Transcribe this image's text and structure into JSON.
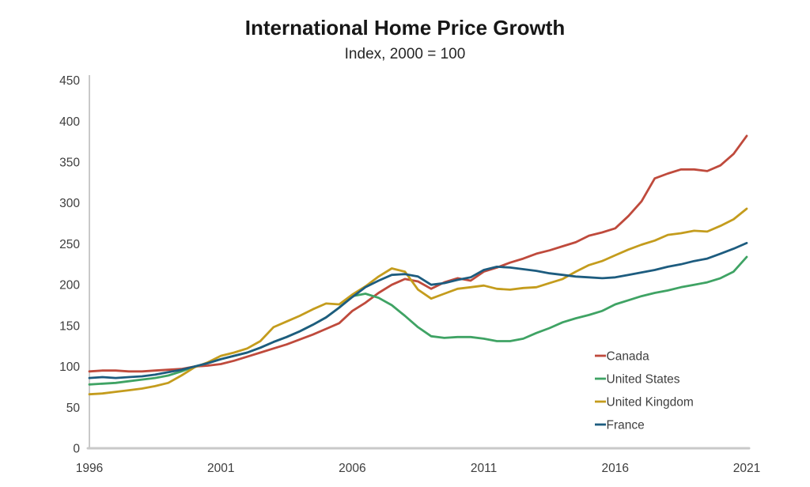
{
  "page": {
    "title": "International Home Price Growth",
    "subtitle": "Index, 2000 = 100"
  },
  "colors": {
    "canada": "#bf4a3c",
    "united_states": "#3fa364",
    "united_kingdom": "#c49c1d",
    "france": "#1d5c7f",
    "axis_line": "#c9c9c9",
    "tick_text": "#3d3d3d",
    "legend_text": "#404040",
    "background": "#ffffff"
  },
  "chart_data": {
    "type": "line",
    "title": "International Home Price Growth",
    "subtitle": "Index, 2000 = 100",
    "xlabel": "",
    "ylabel": "",
    "x_range": [
      1996,
      2021
    ],
    "ylim": [
      0,
      450
    ],
    "x_ticks": [
      "1996",
      "2001",
      "2006",
      "2011",
      "2016",
      "2021"
    ],
    "x_tick_years": [
      1996,
      2001,
      2006,
      2011,
      2016,
      2021
    ],
    "y_ticks": [
      0,
      50,
      100,
      150,
      200,
      250,
      300,
      350,
      400,
      450
    ],
    "grid": false,
    "legend_position": "inside-bottom-right",
    "x": [
      1996,
      1996.5,
      1997,
      1997.5,
      1998,
      1998.5,
      1999,
      1999.5,
      2000,
      2000.5,
      2001,
      2001.5,
      2002,
      2002.5,
      2003,
      2003.5,
      2004,
      2004.5,
      2005,
      2005.5,
      2006,
      2006.5,
      2007,
      2007.5,
      2008,
      2008.5,
      2009,
      2009.5,
      2010,
      2010.5,
      2011,
      2011.5,
      2012,
      2012.5,
      2013,
      2013.5,
      2014,
      2014.5,
      2015,
      2015.5,
      2016,
      2016.5,
      2017,
      2017.5,
      2018,
      2018.5,
      2019,
      2019.5,
      2020,
      2020.5,
      2021
    ],
    "series": [
      {
        "name": "Canada",
        "color": "#bf4a3c",
        "values": [
          94,
          95,
          95,
          94,
          94,
          95,
          96,
          97,
          100,
          101,
          103,
          107,
          112,
          117,
          122,
          127,
          133,
          139,
          146,
          153,
          168,
          178,
          190,
          200,
          207,
          204,
          195,
          203,
          208,
          205,
          216,
          221,
          227,
          232,
          238,
          242,
          247,
          252,
          260,
          264,
          269,
          284,
          302,
          330,
          336,
          341,
          341,
          339,
          346,
          360,
          382
        ]
      },
      {
        "name": "United States",
        "color": "#3fa364",
        "values": [
          78,
          79,
          80,
          82,
          84,
          86,
          89,
          94,
          100,
          104,
          109,
          113,
          117,
          123,
          130,
          136,
          143,
          151,
          160,
          172,
          186,
          189,
          184,
          175,
          162,
          148,
          137,
          135,
          136,
          136,
          134,
          131,
          131,
          134,
          141,
          147,
          154,
          159,
          163,
          168,
          176,
          181,
          186,
          190,
          193,
          197,
          200,
          203,
          208,
          216,
          234
        ]
      },
      {
        "name": "United Kingdom",
        "color": "#c49c1d",
        "values": [
          66,
          67,
          69,
          71,
          73,
          76,
          80,
          89,
          99,
          105,
          113,
          117,
          122,
          131,
          148,
          155,
          162,
          170,
          177,
          176,
          188,
          198,
          210,
          220,
          216,
          194,
          183,
          189,
          195,
          197,
          199,
          195,
          194,
          196,
          197,
          202,
          207,
          216,
          224,
          229,
          236,
          243,
          249,
          254,
          261,
          263,
          266,
          265,
          272,
          280,
          293
        ]
      },
      {
        "name": "France",
        "color": "#1d5c7f",
        "values": [
          86,
          87,
          86,
          87,
          88,
          90,
          93,
          96,
          100,
          104,
          109,
          113,
          117,
          123,
          130,
          136,
          143,
          151,
          160,
          172,
          185,
          197,
          205,
          212,
          213,
          210,
          200,
          202,
          206,
          209,
          218,
          222,
          221,
          219,
          217,
          214,
          212,
          210,
          209,
          208,
          209,
          212,
          215,
          218,
          222,
          225,
          229,
          232,
          238,
          244,
          251
        ]
      }
    ]
  }
}
